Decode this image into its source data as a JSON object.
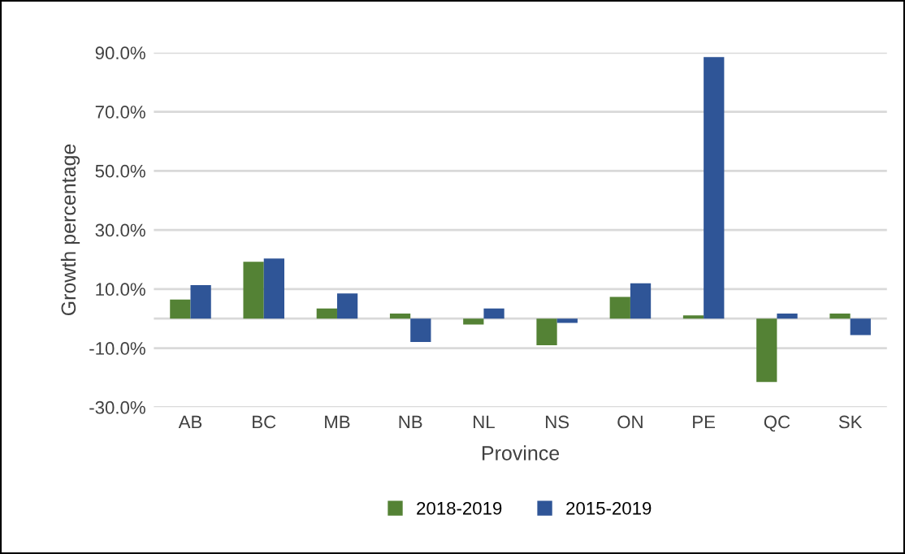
{
  "chart_data": {
    "type": "bar",
    "xlabel": "Province",
    "ylabel": "Growth percentage",
    "categories": [
      "AB",
      "BC",
      "MB",
      "NB",
      "NL",
      "NS",
      "ON",
      "PE",
      "QC",
      "SK"
    ],
    "series": [
      {
        "name": "2018-2019",
        "color": "#548235",
        "values": [
          6.4,
          19.2,
          3.4,
          1.7,
          -2.0,
          -9.0,
          7.3,
          1.1,
          -21.5,
          1.7
        ]
      },
      {
        "name": "2015-2019",
        "color": "#2f5597",
        "values": [
          11.3,
          20.3,
          8.5,
          -7.9,
          3.4,
          -1.5,
          11.9,
          88.5,
          1.7,
          -5.6
        ]
      }
    ],
    "ylim": [
      -30,
      90
    ],
    "yticks": [
      {
        "value": -30,
        "label": "-30.0%"
      },
      {
        "value": -10,
        "label": "-10.0%"
      },
      {
        "value": 10,
        "label": "10.0%"
      },
      {
        "value": 30,
        "label": "30.0%"
      },
      {
        "value": 50,
        "label": "50.0%"
      },
      {
        "value": 70,
        "label": "70.0%"
      },
      {
        "value": 90,
        "label": "90.0%"
      }
    ],
    "grid": "y",
    "legend": "bottom"
  }
}
